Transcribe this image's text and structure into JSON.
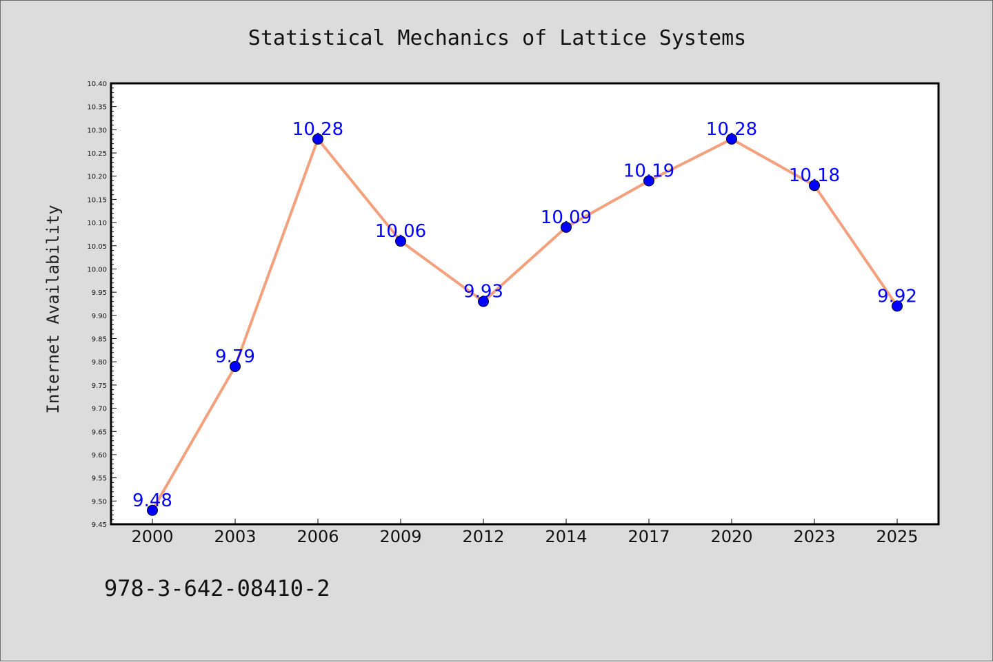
{
  "chart_data": {
    "type": "line",
    "title": "Statistical Mechanics of Lattice Systems",
    "xlabel": "",
    "ylabel": "Internet Availability",
    "categories": [
      "2000",
      "2003",
      "2006",
      "2009",
      "2012",
      "2014",
      "2017",
      "2020",
      "2023",
      "2025"
    ],
    "values": [
      9.48,
      9.79,
      10.28,
      10.06,
      9.93,
      10.09,
      10.19,
      10.28,
      10.18,
      9.92
    ],
    "data_labels": [
      "9.48",
      "9.79",
      "10.28",
      "10.06",
      "9.93",
      "10.09",
      "10.19",
      "10.28",
      "10.18",
      "9.92"
    ],
    "ylim": [
      9.45,
      10.4
    ],
    "yticks": [
      "9.45",
      "9.50",
      "9.55",
      "9.60",
      "9.65",
      "9.70",
      "9.75",
      "9.80",
      "9.85",
      "9.90",
      "9.95",
      "10.00",
      "10.05",
      "10.10",
      "10.15",
      "10.20",
      "10.25",
      "10.30",
      "10.35",
      "10.40"
    ],
    "grid": false,
    "colors": {
      "line": "#f4a07c",
      "marker": "#0000ff",
      "label": "#0000ff",
      "plot_bg": "#ffffff",
      "page_bg": "#dcdcdc"
    }
  },
  "footnote": "978-3-642-08410-2"
}
